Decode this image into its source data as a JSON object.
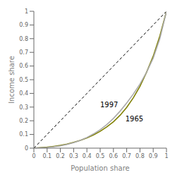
{
  "chart_data": {
    "type": "line",
    "xlabel": "Population share",
    "ylabel": "Income share",
    "xlim": [
      0,
      1
    ],
    "ylim": [
      0,
      1
    ],
    "xticks": [
      0,
      0.1,
      0.2,
      0.3,
      0.4,
      0.5,
      0.6,
      0.7,
      0.8,
      0.9,
      1
    ],
    "yticks": [
      0,
      0.1,
      0.2,
      0.3,
      0.4,
      0.5,
      0.6,
      0.7,
      0.8,
      0.9,
      1
    ],
    "grid": false,
    "series": [
      {
        "color": "#000000",
        "line_style": "dashed",
        "x": [
          0,
          1
        ],
        "values": [
          0,
          1
        ]
      },
      {
        "color": "#808000",
        "line_style": "solid",
        "x": [
          0.0,
          0.05,
          0.1,
          0.15,
          0.2,
          0.25,
          0.3,
          0.35,
          0.4,
          0.45,
          0.5,
          0.55,
          0.6,
          0.65,
          0.7,
          0.75,
          0.8,
          0.85,
          0.9,
          0.95,
          1.0
        ],
        "values": [
          0.0,
          0.003,
          0.007,
          0.013,
          0.02,
          0.03,
          0.042,
          0.057,
          0.075,
          0.097,
          0.123,
          0.155,
          0.193,
          0.24,
          0.298,
          0.368,
          0.452,
          0.555,
          0.672,
          0.82,
          1.0
        ]
      },
      {
        "color": "#aaaaaa",
        "line_style": "solid",
        "x": [
          0.0,
          0.05,
          0.1,
          0.15,
          0.2,
          0.25,
          0.3,
          0.35,
          0.4,
          0.45,
          0.5,
          0.55,
          0.6,
          0.65,
          0.7,
          0.75,
          0.8,
          0.85,
          0.9,
          0.95,
          1.0
        ],
        "values": [
          0.0,
          0.002,
          0.005,
          0.01,
          0.017,
          0.027,
          0.04,
          0.057,
          0.078,
          0.104,
          0.135,
          0.172,
          0.217,
          0.27,
          0.33,
          0.395,
          0.468,
          0.555,
          0.658,
          0.8,
          1.0
        ]
      }
    ],
    "annotations": [
      {
        "text": "1997",
        "x": 0.5,
        "y": 0.315
      },
      {
        "text": "1965",
        "x": 0.69,
        "y": 0.215
      }
    ]
  }
}
